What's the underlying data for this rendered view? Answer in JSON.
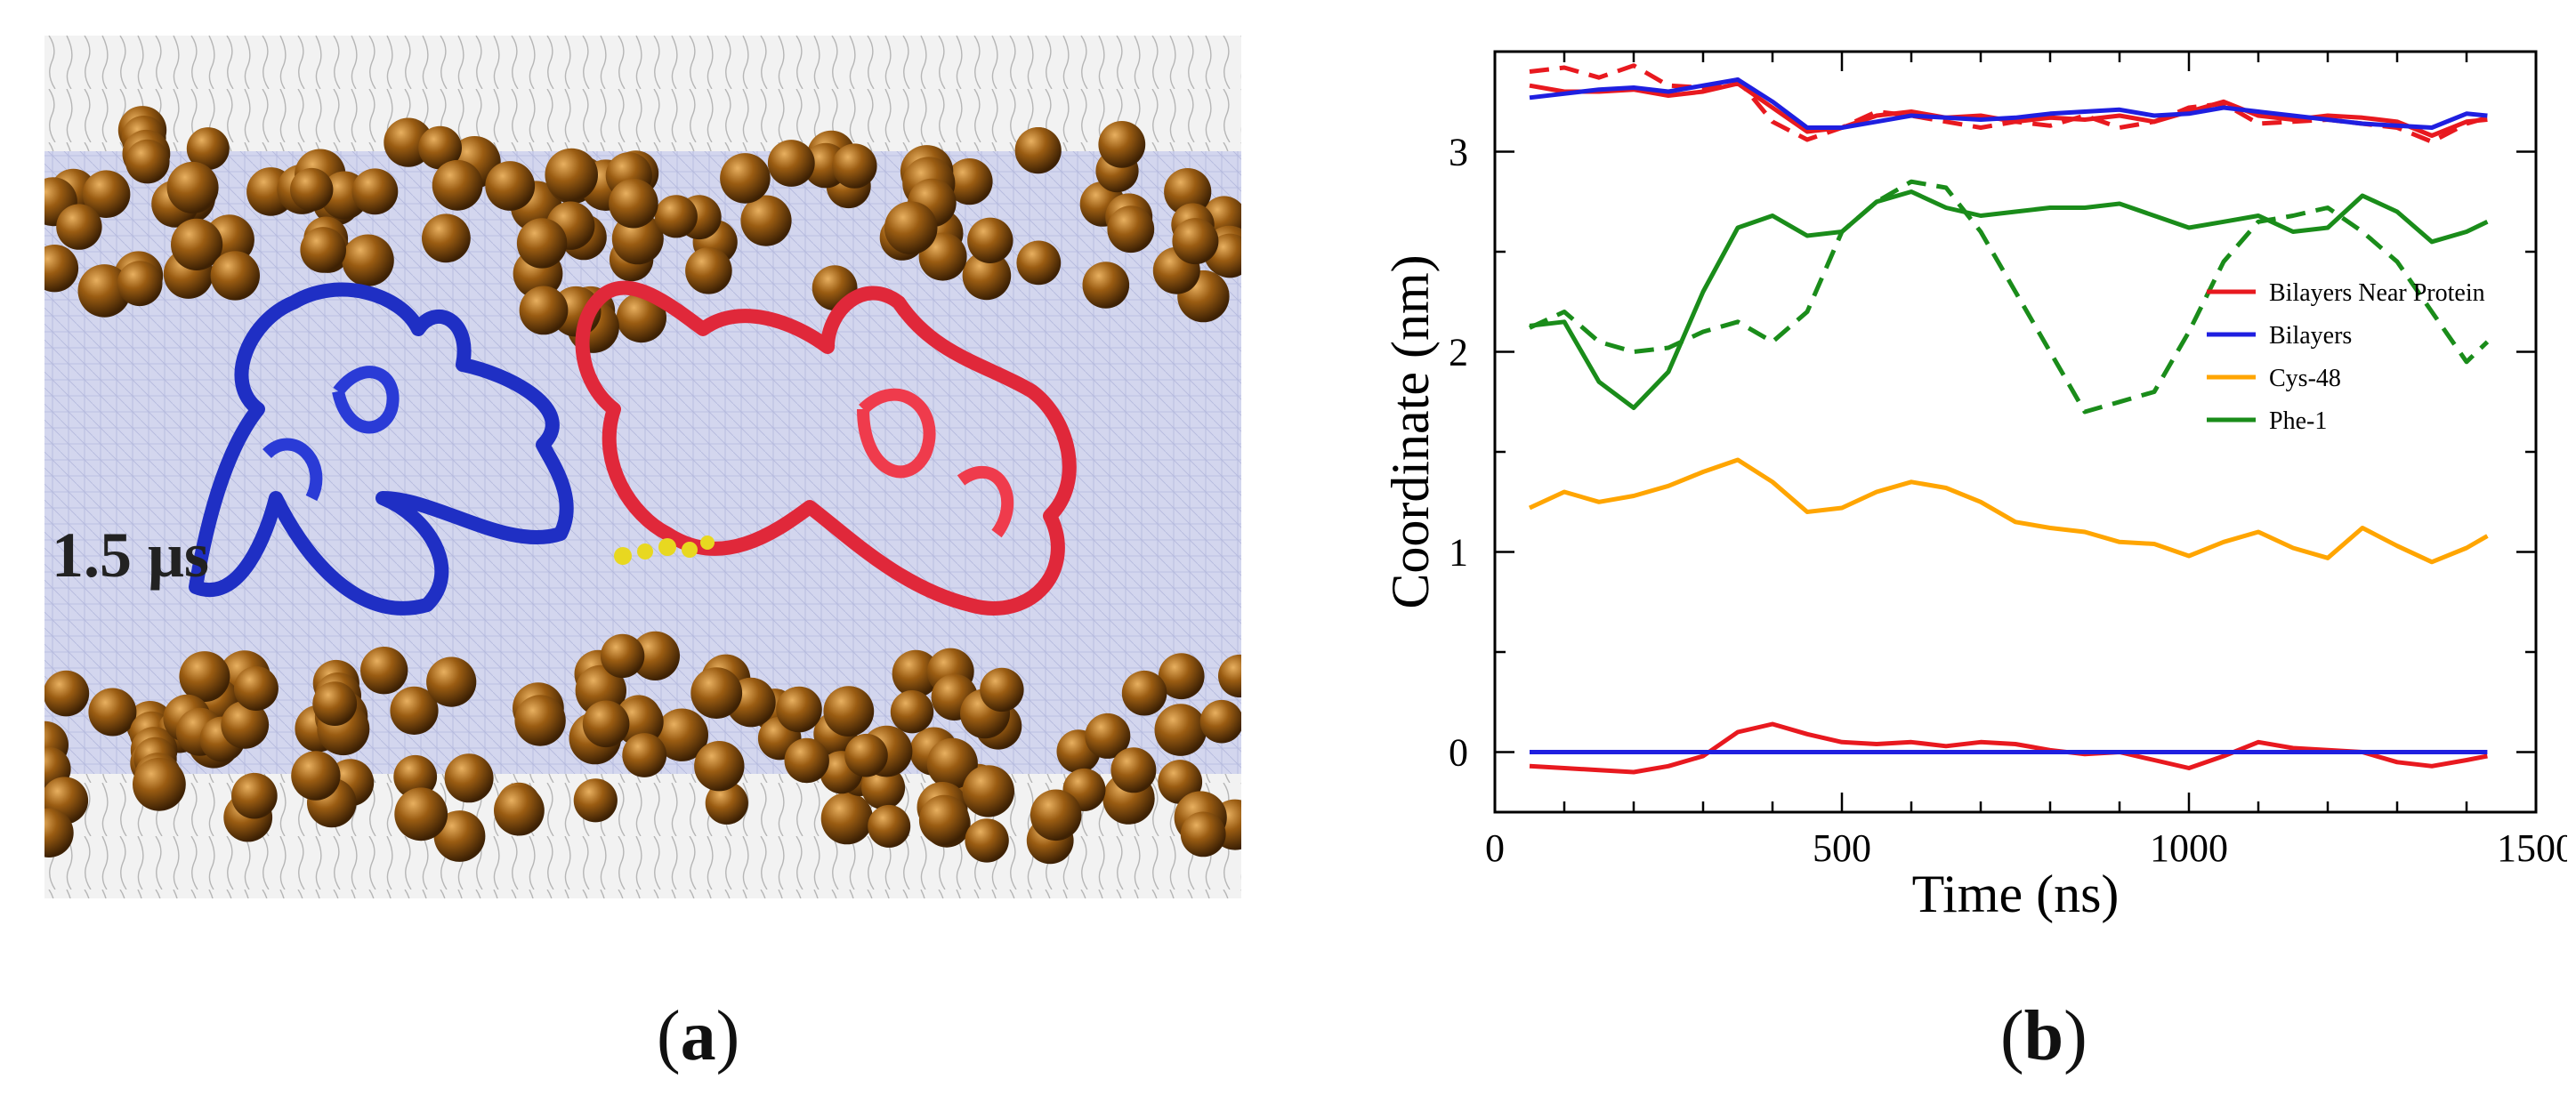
{
  "panel_a": {
    "label_open": "(",
    "label_letter": "a",
    "label_close": ")",
    "time_annotation": "1.5 μs",
    "colors": {
      "background": "#c9cde8",
      "headgroup": "#8a5210",
      "protein_blue": "#1f2fc4",
      "protein_red": "#e0283a",
      "disulfide": "#e8d820",
      "lipid_tails": "#b8b8b8"
    },
    "icons": [
      "membrane-snapshot-image"
    ]
  },
  "panel_b": {
    "label_open": "(",
    "label_letter": "b",
    "label_close": ")"
  },
  "chart_data": {
    "type": "line",
    "title": "",
    "xlabel": "Time (ns)",
    "ylabel": "Coordinate (nm)",
    "xlim": [
      0,
      1500
    ],
    "ylim": [
      -0.3,
      3.5
    ],
    "xticks": [
      0,
      500,
      1000,
      1500
    ],
    "yticks": [
      0,
      1,
      2,
      3
    ],
    "legend_position": "center-right",
    "series": [
      {
        "name": "Bilayers Near Protein",
        "legend": true,
        "color": "#e8191f",
        "style": "solid",
        "x": [
          50,
          100,
          150,
          200,
          250,
          300,
          350,
          400,
          450,
          500,
          550,
          600,
          650,
          700,
          750,
          800,
          850,
          900,
          950,
          1000,
          1050,
          1100,
          1150,
          1200,
          1250,
          1300,
          1350,
          1400,
          1430
        ],
        "y": [
          3.33,
          3.3,
          3.3,
          3.31,
          3.28,
          3.3,
          3.34,
          3.22,
          3.1,
          3.12,
          3.18,
          3.2,
          3.17,
          3.18,
          3.15,
          3.17,
          3.16,
          3.18,
          3.15,
          3.2,
          3.25,
          3.18,
          3.16,
          3.18,
          3.17,
          3.15,
          3.08,
          3.15,
          3.16
        ]
      },
      {
        "name": "Bilayers Near Protein (upper, dashed)",
        "legend": false,
        "color": "#e8191f",
        "style": "dashed",
        "x": [
          50,
          100,
          150,
          200,
          250,
          300,
          350,
          400,
          450,
          500,
          550,
          600,
          650,
          700,
          750,
          800,
          850,
          900,
          950,
          1000,
          1050,
          1100,
          1150,
          1200,
          1250,
          1300,
          1350,
          1400,
          1430
        ],
        "y": [
          3.4,
          3.42,
          3.37,
          3.43,
          3.33,
          3.32,
          3.36,
          3.15,
          3.06,
          3.12,
          3.2,
          3.18,
          3.15,
          3.12,
          3.15,
          3.13,
          3.18,
          3.12,
          3.15,
          3.22,
          3.24,
          3.14,
          3.15,
          3.16,
          3.14,
          3.12,
          3.05,
          3.14,
          3.17
        ]
      },
      {
        "name": "Bilayers Near Protein (lower)",
        "legend": false,
        "color": "#e8191f",
        "style": "solid",
        "x": [
          50,
          100,
          150,
          200,
          250,
          300,
          350,
          400,
          450,
          500,
          550,
          600,
          650,
          700,
          750,
          800,
          850,
          900,
          950,
          1000,
          1050,
          1100,
          1150,
          1200,
          1250,
          1300,
          1350,
          1400,
          1430
        ],
        "y": [
          -0.07,
          -0.08,
          -0.09,
          -0.1,
          -0.07,
          -0.02,
          0.1,
          0.14,
          0.09,
          0.05,
          0.04,
          0.05,
          0.03,
          0.05,
          0.04,
          0.01,
          -0.01,
          0.0,
          -0.04,
          -0.08,
          -0.02,
          0.05,
          0.02,
          0.01,
          0.0,
          -0.05,
          -0.07,
          -0.04,
          -0.02
        ]
      },
      {
        "name": "Bilayers",
        "legend": true,
        "color": "#1f1fe0",
        "style": "solid",
        "x": [
          50,
          100,
          150,
          200,
          250,
          300,
          350,
          400,
          450,
          500,
          550,
          600,
          650,
          700,
          750,
          800,
          850,
          900,
          950,
          1000,
          1050,
          1100,
          1150,
          1200,
          1250,
          1300,
          1350,
          1400,
          1430
        ],
        "y": [
          3.27,
          3.29,
          3.31,
          3.32,
          3.3,
          3.33,
          3.36,
          3.25,
          3.12,
          3.12,
          3.15,
          3.18,
          3.17,
          3.16,
          3.17,
          3.19,
          3.2,
          3.21,
          3.18,
          3.19,
          3.22,
          3.2,
          3.18,
          3.16,
          3.14,
          3.13,
          3.12,
          3.19,
          3.18
        ]
      },
      {
        "name": "Bilayers (lower)",
        "legend": false,
        "color": "#1f1fe0",
        "style": "solid",
        "x": [
          50,
          1430
        ],
        "y": [
          0.0,
          0.0
        ]
      },
      {
        "name": "Cys-48",
        "legend": true,
        "color": "#ffa500",
        "style": "solid",
        "x": [
          50,
          100,
          150,
          200,
          250,
          300,
          350,
          400,
          450,
          500,
          550,
          600,
          650,
          700,
          750,
          800,
          850,
          900,
          950,
          1000,
          1050,
          1100,
          1150,
          1200,
          1250,
          1300,
          1350,
          1400,
          1430
        ],
        "y": [
          1.22,
          1.3,
          1.25,
          1.28,
          1.33,
          1.4,
          1.46,
          1.35,
          1.2,
          1.22,
          1.3,
          1.35,
          1.32,
          1.25,
          1.15,
          1.12,
          1.1,
          1.05,
          1.04,
          0.98,
          1.05,
          1.1,
          1.02,
          0.97,
          1.12,
          1.03,
          0.95,
          1.02,
          1.08
        ]
      },
      {
        "name": "Phe-1",
        "legend": true,
        "color": "#1a8c1a",
        "style": "solid",
        "x": [
          50,
          100,
          150,
          200,
          250,
          300,
          350,
          400,
          450,
          500,
          550,
          600,
          650,
          700,
          750,
          800,
          850,
          900,
          950,
          1000,
          1050,
          1100,
          1150,
          1200,
          1250,
          1300,
          1350,
          1400,
          1430
        ],
        "y": [
          2.13,
          2.15,
          1.85,
          1.72,
          1.9,
          2.3,
          2.62,
          2.68,
          2.58,
          2.6,
          2.75,
          2.8,
          2.72,
          2.68,
          2.7,
          2.72,
          2.72,
          2.74,
          2.68,
          2.62,
          2.65,
          2.68,
          2.6,
          2.62,
          2.78,
          2.7,
          2.55,
          2.6,
          2.65
        ]
      },
      {
        "name": "Phe-1 (dashed)",
        "legend": false,
        "color": "#1a8c1a",
        "style": "dashed",
        "x": [
          50,
          100,
          150,
          200,
          250,
          300,
          350,
          400,
          450,
          500,
          550,
          600,
          650,
          700,
          750,
          800,
          850,
          900,
          950,
          1000,
          1050,
          1100,
          1150,
          1200,
          1250,
          1300,
          1350,
          1400,
          1430
        ],
        "y": [
          2.12,
          2.2,
          2.05,
          2.0,
          2.02,
          2.1,
          2.15,
          2.05,
          2.2,
          2.6,
          2.75,
          2.85,
          2.82,
          2.6,
          2.3,
          2.0,
          1.7,
          1.75,
          1.8,
          2.1,
          2.45,
          2.65,
          2.68,
          2.72,
          2.6,
          2.45,
          2.2,
          1.95,
          2.05
        ]
      }
    ]
  }
}
